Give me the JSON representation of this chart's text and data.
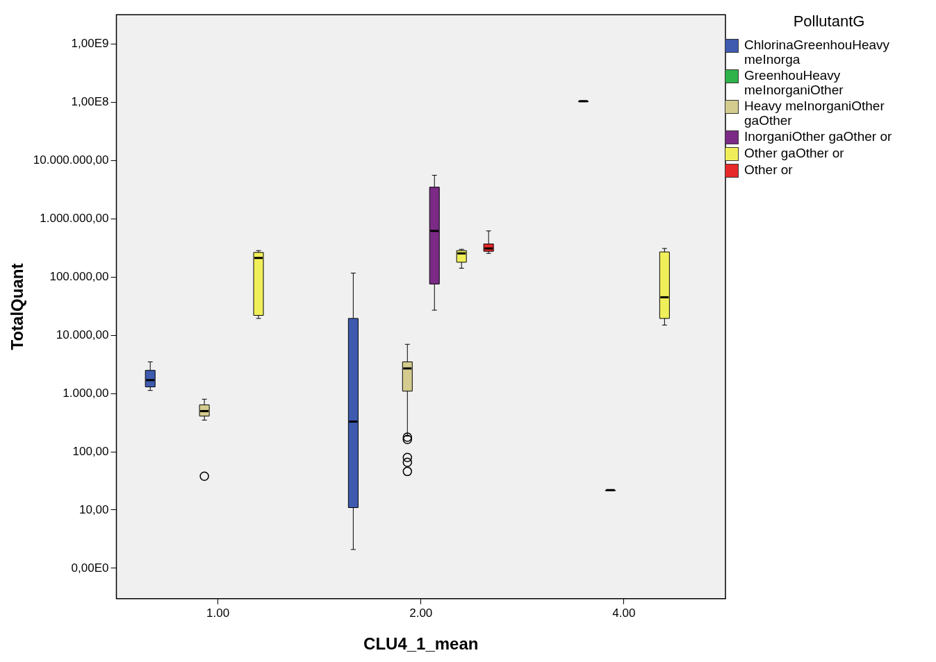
{
  "chart_data": {
    "type": "box",
    "xlabel": "CLU4_1_mean",
    "ylabel": "TotalQuant",
    "legend_title": "PollutantG",
    "legend": "top right",
    "log": "y",
    "categories": [
      "1.00",
      "2.00",
      "4.00"
    ],
    "ylim": [
      0.32,
      3200000000.0
    ],
    "yticks": [
      {
        "value": 1,
        "label": "0,00E0"
      },
      {
        "value": 10,
        "label": "10,00"
      },
      {
        "value": 100,
        "label": "100,00"
      },
      {
        "value": 1000,
        "label": "1.000,00"
      },
      {
        "value": 10000,
        "label": "10.000,00"
      },
      {
        "value": 100000,
        "label": "100.000,00"
      },
      {
        "value": 1000000,
        "label": "1.000.000,00"
      },
      {
        "value": 10000000,
        "label": "10.000.000,00"
      },
      {
        "value": 100000000,
        "label": "1,00E8"
      },
      {
        "value": 1000000000,
        "label": "1,00E9"
      }
    ],
    "series": [
      {
        "name": "ChlorinaGreenhouHeavy meInorga",
        "color": "#3e5bb0",
        "boxes": [
          {
            "low": 1130,
            "q1": 1300,
            "median": 1700,
            "q3": 2500,
            "high": 3500
          },
          {
            "low": 2.1,
            "q1": 11,
            "median": 330,
            "q3": 19500,
            "high": 117000
          },
          null
        ]
      },
      {
        "name": "GreenhouHeavy meInorganiOther",
        "color": "#2db34a",
        "boxes": [
          null,
          null,
          {
            "low": 105000000,
            "q1": 105000000,
            "median": 105000000,
            "q3": 105000000,
            "high": 105000000
          }
        ]
      },
      {
        "name": "Heavy meInorganiOther gaOther",
        "color": "#d4cc8e",
        "boxes": [
          {
            "low": 350,
            "q1": 410,
            "median": 500,
            "q3": 640,
            "high": 800,
            "outliers": [
              38
            ]
          },
          {
            "low": 186,
            "q1": 1100,
            "median": 2700,
            "q3": 3500,
            "high": 7000,
            "outliers": [
              178,
              163,
              80,
              66,
              46
            ]
          },
          {
            "low": 22,
            "q1": 22,
            "median": 22,
            "q3": 22,
            "high": 22
          }
        ]
      },
      {
        "name": "InorganiOther gaOther or",
        "color": "#7b2a86",
        "boxes": [
          null,
          {
            "low": 27000,
            "q1": 76000,
            "median": 620000,
            "q3": 3500000,
            "high": 5600000
          },
          null
        ]
      },
      {
        "name": "Other gaOther or",
        "color": "#f0ef5a",
        "boxes": [
          {
            "low": 19500,
            "q1": 22000,
            "median": 213000,
            "q3": 265000,
            "high": 285000
          },
          {
            "low": 142000,
            "q1": 180000,
            "median": 255000,
            "q3": 285000,
            "high": 300000
          },
          {
            "low": 15000,
            "q1": 19500,
            "median": 45000,
            "q3": 270000,
            "high": 310000
          }
        ]
      },
      {
        "name": "Other or",
        "color": "#e8292a",
        "boxes": [
          null,
          {
            "low": 255000,
            "q1": 277000,
            "median": 310000,
            "q3": 370000,
            "high": 620000
          },
          null
        ]
      }
    ]
  }
}
